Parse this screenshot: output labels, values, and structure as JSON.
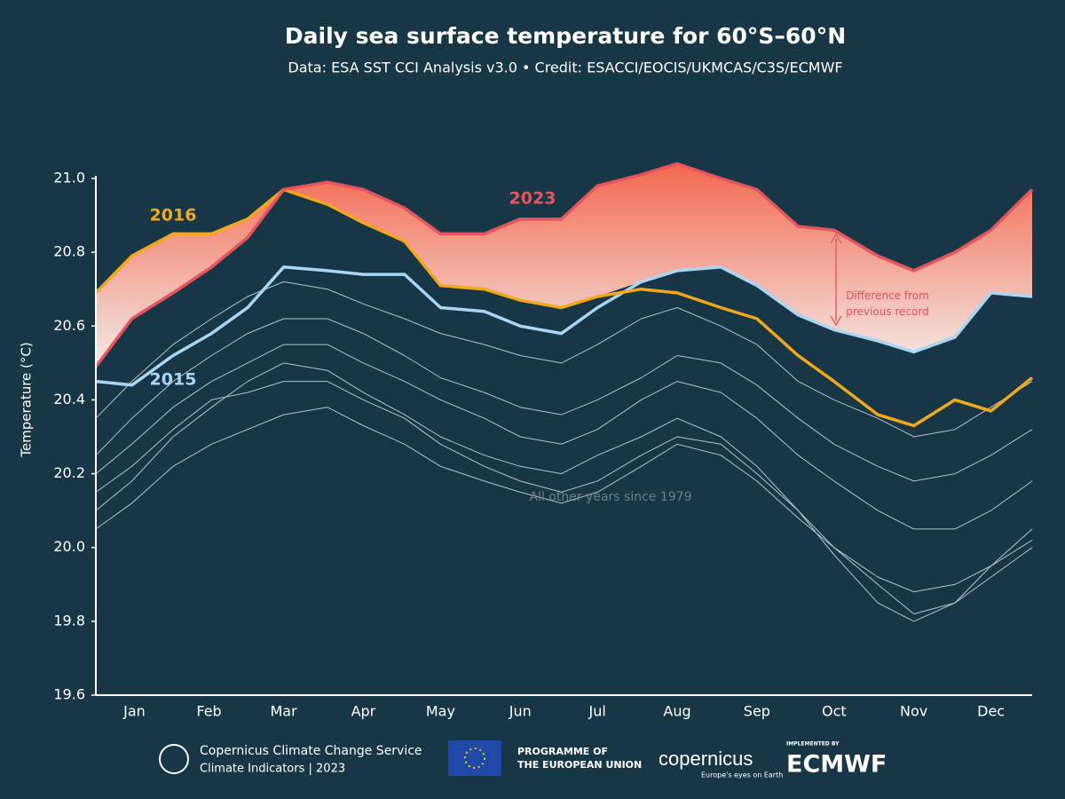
{
  "chart_data": {
    "type": "line",
    "title": "Daily sea surface temperature for 60°S–60°N",
    "subtitle": "Data: ESA SST CCI Analysis v3.0 • Credit: ESACCI/EOCIS/UKMCAS/C3S/ECMWF",
    "y_label": "Temperature (°C)",
    "x": [
      1,
      15,
      31,
      46,
      60,
      74,
      91,
      105,
      121,
      135,
      152,
      166,
      182,
      196,
      213,
      227,
      244,
      258,
      274,
      288,
      305,
      319,
      335,
      349,
      365
    ],
    "xlim": [
      1,
      365
    ],
    "xticks": [
      {
        "value": 16,
        "label": "Jan"
      },
      {
        "value": 45,
        "label": "Feb"
      },
      {
        "value": 74,
        "label": "Mar"
      },
      {
        "value": 105,
        "label": "Apr"
      },
      {
        "value": 135,
        "label": "May"
      },
      {
        "value": 166,
        "label": "Jun"
      },
      {
        "value": 196,
        "label": "Jul"
      },
      {
        "value": 227,
        "label": "Aug"
      },
      {
        "value": 258,
        "label": "Sep"
      },
      {
        "value": 288,
        "label": "Oct"
      },
      {
        "value": 319,
        "label": "Nov"
      },
      {
        "value": 349,
        "label": "Dec"
      }
    ],
    "ylim": [
      19.6,
      21.0
    ],
    "yticks": [
      {
        "value": 19.6,
        "label": "19.6"
      },
      19.8,
      {
        "value": 20.0,
        "label": "20.0"
      },
      20.2,
      20.4,
      20.6,
      20.8,
      {
        "value": 21.0,
        "label": "21.0"
      }
    ],
    "series": [
      {
        "name": "2023",
        "color": "#e8545c",
        "values": [
          20.49,
          20.62,
          20.69,
          20.76,
          20.84,
          20.97,
          20.99,
          20.97,
          20.92,
          20.85,
          20.85,
          20.89,
          20.89,
          20.98,
          21.01,
          21.04,
          21.0,
          20.97,
          20.87,
          20.86,
          20.79,
          20.75,
          20.8,
          20.86,
          20.97
        ]
      },
      {
        "name": "2016",
        "color": "#f2a81d",
        "values": [
          20.69,
          20.79,
          20.85,
          20.85,
          20.89,
          20.97,
          20.93,
          20.88,
          20.83,
          20.71,
          20.7,
          20.67,
          20.65,
          20.68,
          20.7,
          20.69,
          20.65,
          20.62,
          20.52,
          20.45,
          20.36,
          20.33,
          20.4,
          20.37,
          20.46
        ]
      },
      {
        "name": "2015",
        "color": "#a9d6f2",
        "values": [
          20.45,
          20.44,
          20.52,
          20.58,
          20.65,
          20.76,
          20.75,
          20.74,
          20.74,
          20.65,
          20.64,
          20.6,
          20.58,
          20.65,
          20.72,
          20.75,
          20.76,
          20.71,
          20.63,
          20.59,
          20.56,
          20.53,
          20.57,
          20.69,
          20.68
        ]
      }
    ],
    "background_label": "All other years since 1979",
    "background_color": "#b8c2c8",
    "background_series": [
      [
        20.35,
        20.45,
        20.55,
        20.62,
        20.68,
        20.72,
        20.7,
        20.66,
        20.62,
        20.58,
        20.55,
        20.52,
        20.5,
        20.55,
        20.62,
        20.65,
        20.6,
        20.55,
        20.45,
        20.4,
        20.35,
        20.3,
        20.32,
        20.38,
        20.45
      ],
      [
        20.2,
        20.28,
        20.38,
        20.45,
        20.5,
        20.55,
        20.55,
        20.5,
        20.45,
        20.4,
        20.35,
        20.3,
        20.28,
        20.32,
        20.4,
        20.45,
        20.42,
        20.35,
        20.25,
        20.18,
        20.1,
        20.05,
        20.05,
        20.1,
        20.18
      ],
      [
        20.05,
        20.12,
        20.22,
        20.28,
        20.32,
        20.36,
        20.38,
        20.33,
        20.28,
        20.22,
        20.18,
        20.15,
        20.12,
        20.15,
        20.22,
        20.28,
        20.25,
        20.18,
        20.08,
        20.0,
        19.92,
        19.88,
        19.9,
        19.95,
        20.02
      ],
      [
        20.1,
        20.18,
        20.3,
        20.38,
        20.45,
        20.5,
        20.48,
        20.42,
        20.36,
        20.3,
        20.25,
        20.22,
        20.2,
        20.25,
        20.3,
        20.35,
        20.3,
        20.22,
        20.1,
        20.0,
        19.9,
        19.82,
        19.85,
        19.92,
        20.0
      ],
      [
        20.25,
        20.35,
        20.45,
        20.52,
        20.58,
        20.62,
        20.62,
        20.58,
        20.52,
        20.46,
        20.42,
        20.38,
        20.36,
        20.4,
        20.46,
        20.52,
        20.5,
        20.44,
        20.35,
        20.28,
        20.22,
        20.18,
        20.2,
        20.25,
        20.32
      ],
      [
        20.15,
        20.22,
        20.32,
        20.4,
        20.42,
        20.45,
        20.45,
        20.4,
        20.35,
        20.28,
        20.22,
        20.18,
        20.15,
        20.18,
        20.25,
        20.3,
        20.28,
        20.2,
        20.1,
        19.98,
        19.85,
        19.8,
        19.85,
        19.95,
        20.05
      ]
    ],
    "annotation": "Difference from previous record"
  },
  "footer": {
    "c3s_line1": "Copernicus Climate Change Service",
    "c3s_line2": "Climate Indicators | 2023",
    "eu_line1": "PROGRAMME OF",
    "eu_line2": "THE EUROPEAN UNION",
    "copernicus": "copernicus",
    "copernicus_tagline": "Europe's eyes on Earth",
    "implemented_by": "IMPLEMENTED BY",
    "ecmwf": "ECMWF"
  }
}
